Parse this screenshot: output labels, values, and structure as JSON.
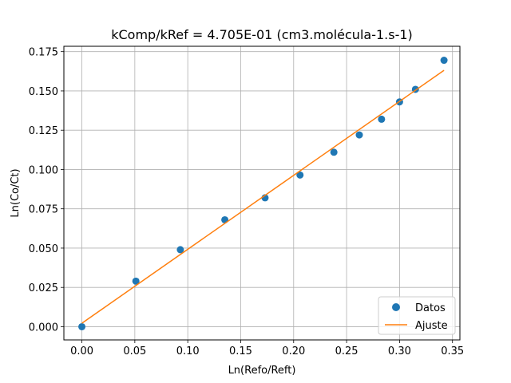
{
  "chart_data": {
    "type": "scatter",
    "title": "kComp/kRef = 4.705E-01 (cm3.molécula-1.s-1)",
    "xlabel": "Ln(Refo/Reft)",
    "ylabel": "Ln(Co/Ct)",
    "xlim": [
      -0.017,
      0.357
    ],
    "ylim": [
      -0.0084,
      0.1784
    ],
    "x_ticks": [
      "0.00",
      "0.05",
      "0.10",
      "0.15",
      "0.20",
      "0.25",
      "0.30",
      "0.35"
    ],
    "y_ticks": [
      "0.000",
      "0.025",
      "0.050",
      "0.075",
      "0.100",
      "0.125",
      "0.150",
      "0.175"
    ],
    "grid": true,
    "legend_position": "lower-right",
    "series": [
      {
        "name": "Datos",
        "kind": "markers",
        "color": "#1f77b4",
        "points": [
          [
            0.0,
            0.0
          ],
          [
            0.051,
            0.029
          ],
          [
            0.093,
            0.049
          ],
          [
            0.135,
            0.068
          ],
          [
            0.173,
            0.082
          ],
          [
            0.206,
            0.0965
          ],
          [
            0.238,
            0.111
          ],
          [
            0.262,
            0.122
          ],
          [
            0.283,
            0.132
          ],
          [
            0.3,
            0.143
          ],
          [
            0.315,
            0.151
          ],
          [
            0.342,
            0.1695
          ]
        ]
      },
      {
        "name": "Ajuste",
        "kind": "line",
        "color": "#ff7f0e",
        "points": [
          [
            0.0,
            0.0022
          ],
          [
            0.342,
            0.1631
          ]
        ]
      }
    ]
  }
}
